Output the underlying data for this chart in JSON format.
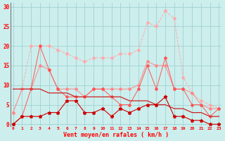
{
  "x": [
    0,
    1,
    2,
    3,
    4,
    5,
    6,
    7,
    8,
    9,
    10,
    11,
    12,
    13,
    14,
    15,
    16,
    17,
    18,
    19,
    20,
    21,
    22,
    23
  ],
  "line_rafales_max": [
    3,
    9,
    20,
    20,
    20,
    19,
    18,
    17,
    16,
    17,
    17,
    17,
    18,
    18,
    19,
    26,
    25,
    29,
    27,
    12,
    8,
    6,
    5,
    4
  ],
  "line_rafales": [
    3,
    9,
    9,
    15,
    14,
    9,
    9,
    9,
    7,
    9,
    9,
    9,
    9,
    9,
    10,
    16,
    15,
    15,
    9,
    9,
    8,
    5,
    4,
    4
  ],
  "line_vent_max": [
    0,
    2,
    9,
    20,
    14,
    9,
    7,
    7,
    7,
    9,
    9,
    7,
    5,
    5,
    9,
    15,
    9,
    17,
    9,
    9,
    5,
    5,
    2,
    4
  ],
  "line_vent": [
    0,
    2,
    2,
    2,
    3,
    3,
    6,
    6,
    3,
    3,
    4,
    2,
    4,
    3,
    4,
    5,
    5,
    7,
    2,
    2,
    1,
    1,
    0,
    0
  ],
  "line_trend": [
    9,
    9,
    9,
    9,
    8,
    8,
    8,
    7,
    7,
    7,
    7,
    7,
    7,
    6,
    6,
    6,
    5,
    5,
    4,
    4,
    3,
    3,
    2,
    2
  ],
  "bg_color": "#cceeed",
  "grid_color": "#99cccc",
  "color_rafales_max": "#ffaaaa",
  "color_rafales": "#ff8888",
  "color_vent_max": "#ff5555",
  "color_vent": "#cc0000",
  "color_trend": "#cc2222",
  "xlabel": "Vent moyen/en rafales ( km/h )",
  "ylabel_ticks": [
    0,
    5,
    10,
    15,
    20,
    25,
    30
  ],
  "ylim": [
    -0.5,
    31
  ],
  "xlim": [
    -0.3,
    23.3
  ]
}
